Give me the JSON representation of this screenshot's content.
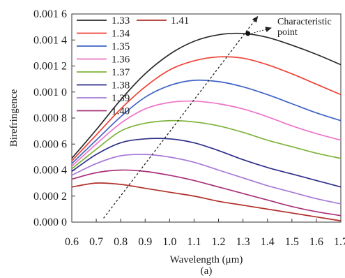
{
  "chart_data": {
    "type": "line",
    "xlabel": "Wavelength (μm)",
    "ylabel": "Birefringence",
    "panel_label": "(a)",
    "xlim": [
      0.6,
      1.7
    ],
    "ylim": [
      0.0,
      0.0016
    ],
    "x_ticks": [
      0.6,
      0.7,
      0.8,
      0.9,
      1.0,
      1.1,
      1.2,
      1.3,
      1.4,
      1.5,
      1.6,
      1.7
    ],
    "x_tick_labels": [
      "0.6",
      "0.7",
      "0.8",
      "0.9",
      "1.0",
      "1.1",
      "1.2",
      "1.3",
      "1.4",
      "1.5",
      "1.6",
      "1.7"
    ],
    "y_ticks": [
      0.0,
      0.0002,
      0.0004,
      0.0006,
      0.0008,
      0.001,
      0.0012,
      0.0014,
      0.0016
    ],
    "y_tick_labels": [
      "0.000 0",
      "0.000 2",
      "0.000 4",
      "0.000 6",
      "0.000 8",
      "0.001 0",
      "0.001 2",
      "0.001 4",
      "0.001 6"
    ],
    "grid": false,
    "legend_position": "top-left",
    "series": [
      {
        "name": "1.33",
        "color": "#2b2b2b",
        "x": [
          0.6,
          0.7,
          0.8,
          0.9,
          1.0,
          1.1,
          1.2,
          1.3,
          1.4,
          1.5,
          1.6,
          1.7
        ],
        "y": [
          0.00049,
          0.00071,
          0.00094,
          0.00114,
          0.00129,
          0.00139,
          0.00144,
          0.00145,
          0.00142,
          0.00136,
          0.00129,
          0.00121
        ]
      },
      {
        "name": "1.34",
        "color": "#ef4135",
        "x": [
          0.6,
          0.7,
          0.8,
          0.9,
          1.0,
          1.1,
          1.2,
          1.3,
          1.4,
          1.5,
          1.6,
          1.7
        ],
        "y": [
          0.00047,
          0.00067,
          0.00087,
          0.00104,
          0.00117,
          0.00124,
          0.00127,
          0.00126,
          0.00121,
          0.00114,
          0.00106,
          0.00098
        ]
      },
      {
        "name": "1.35",
        "color": "#3f62c6",
        "x": [
          0.6,
          0.7,
          0.8,
          0.9,
          1.0,
          1.1,
          1.2,
          1.3,
          1.4,
          1.5,
          1.6,
          1.7
        ],
        "y": [
          0.00045,
          0.00063,
          0.00081,
          0.00096,
          0.00105,
          0.00109,
          0.00108,
          0.00104,
          0.00098,
          0.00091,
          0.00084,
          0.00078
        ]
      },
      {
        "name": "1.36",
        "color": "#ee74c8",
        "x": [
          0.6,
          0.7,
          0.8,
          0.9,
          1.0,
          1.1,
          1.2,
          1.3,
          1.4,
          1.5,
          1.6,
          1.7
        ],
        "y": [
          0.00043,
          0.0006,
          0.00076,
          0.00087,
          0.00092,
          0.00093,
          0.00091,
          0.00087,
          0.00081,
          0.00074,
          0.00068,
          0.00063
        ]
      },
      {
        "name": "1.37",
        "color": "#7db33a",
        "x": [
          0.6,
          0.7,
          0.8,
          0.9,
          1.0,
          1.1,
          1.2,
          1.3,
          1.4,
          1.5,
          1.6,
          1.7
        ],
        "y": [
          0.00041,
          0.00056,
          0.0007,
          0.00076,
          0.00078,
          0.00077,
          0.00074,
          0.00069,
          0.00063,
          0.00058,
          0.00053,
          0.00049
        ]
      },
      {
        "name": "1.38",
        "color": "#2e2e8a",
        "x": [
          0.6,
          0.7,
          0.8,
          0.9,
          1.0,
          1.1,
          1.2,
          1.3,
          1.4,
          1.5,
          1.6,
          1.7
        ],
        "y": [
          0.00039,
          0.00052,
          0.00061,
          0.00064,
          0.00064,
          0.00061,
          0.00055,
          0.00048,
          0.00042,
          0.00037,
          0.00032,
          0.00027
        ]
      },
      {
        "name": "1.39",
        "color": "#a679d6",
        "x": [
          0.6,
          0.7,
          0.8,
          0.9,
          1.0,
          1.1,
          1.2,
          1.3,
          1.4,
          1.5,
          1.6,
          1.7
        ],
        "y": [
          0.00036,
          0.00045,
          0.00051,
          0.00052,
          0.0005,
          0.00046,
          0.0004,
          0.00034,
          0.00028,
          0.00023,
          0.00018,
          0.00014
        ]
      },
      {
        "name": "1.40",
        "color": "#a8327a",
        "x": [
          0.6,
          0.7,
          0.8,
          0.9,
          1.0,
          1.1,
          1.2,
          1.3,
          1.4,
          1.5,
          1.6,
          1.7
        ],
        "y": [
          0.00033,
          0.00038,
          0.0004,
          0.00039,
          0.00036,
          0.00032,
          0.00027,
          0.00022,
          0.00017,
          0.00012,
          8e-05,
          5e-05
        ]
      },
      {
        "name": "1.41",
        "color": "#b0302a",
        "x": [
          0.6,
          0.7,
          0.8,
          0.9,
          1.0,
          1.1,
          1.2,
          1.3,
          1.4,
          1.5,
          1.6,
          1.7
        ],
        "y": [
          0.00027,
          0.0003,
          0.00029,
          0.00026,
          0.00023,
          0.0002,
          0.00016,
          0.00013,
          0.0001,
          7e-05,
          4e-05,
          1e-05
        ]
      }
    ],
    "annotations": [
      {
        "text_lines": [
          "Characteristic",
          "point"
        ],
        "point": {
          "x": 1.32,
          "y": 0.00145
        },
        "label_near": {
          "x": 1.56,
          "y": 0.00152
        }
      },
      {
        "type": "dotted-arrow",
        "from": {
          "x": 0.73,
          "y": 3e-05
        },
        "to": {
          "x": 1.36,
          "y": 0.00158
        }
      }
    ]
  }
}
